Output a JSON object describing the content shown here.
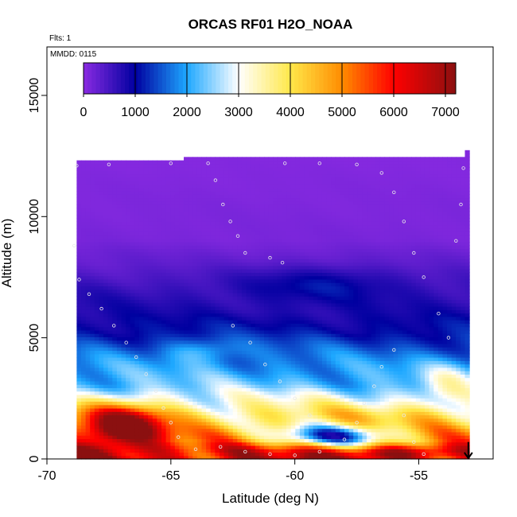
{
  "chart_data": {
    "type": "heatmap",
    "title": "ORCAS RF01 H2O_NOAA",
    "annotations": {
      "flights": "Flts: 1",
      "date": "MMDD: 0115"
    },
    "xlabel": "Latitude (deg N)",
    "ylabel": "Altitude (m)",
    "xlim": [
      -70,
      -52
    ],
    "ylim": [
      0,
      17000
    ],
    "x_ticks": [
      -70,
      -65,
      -60,
      -55
    ],
    "y_ticks": [
      0,
      5000,
      10000,
      15000
    ],
    "x_tick_labels": [
      "-70",
      "-65",
      "-60",
      "-55"
    ],
    "y_tick_labels": [
      "0",
      "5000",
      "10000",
      "15000"
    ],
    "colorbar": {
      "min": 0,
      "max": 7200,
      "ticks": [
        0,
        1000,
        2000,
        3000,
        4000,
        5000,
        6000,
        7000
      ],
      "tick_labels": [
        "0",
        "1000",
        "2000",
        "3000",
        "4000",
        "5000",
        "6000",
        "7000"
      ],
      "colors": [
        "#8a2be2",
        "#0000a0",
        "#1ea8ff",
        "#ffffff",
        "#ffe84a",
        "#ff8c00",
        "#ff0000",
        "#8b1010"
      ],
      "stops": [
        0,
        1000,
        2000,
        3000,
        4000,
        5000,
        6000,
        7200
      ]
    },
    "coverage": {
      "lat_min": -68.8,
      "lat_max": -53.0,
      "alt_top": 12300,
      "alt_top_right": 12700
    },
    "profile": [
      {
        "alt": 0,
        "value": 6200
      },
      {
        "alt": 300,
        "value": 5800
      },
      {
        "alt": 700,
        "value": 4800
      },
      {
        "alt": 1200,
        "value": 4400
      },
      {
        "alt": 1800,
        "value": 3900
      },
      {
        "alt": 2400,
        "value": 3000
      },
      {
        "alt": 3000,
        "value": 2300
      },
      {
        "alt": 3800,
        "value": 1900
      },
      {
        "alt": 4500,
        "value": 1500
      },
      {
        "alt": 5200,
        "value": 1100
      },
      {
        "alt": 6000,
        "value": 800
      },
      {
        "alt": 7000,
        "value": 600
      },
      {
        "alt": 8000,
        "value": 300
      },
      {
        "alt": 9000,
        "value": 120
      },
      {
        "alt": 12300,
        "value": 50
      }
    ],
    "anomalies": [
      {
        "lat": -66.7,
        "alt": 1400,
        "lat_width": 1.6,
        "alt_width": 900,
        "amp": 2600
      },
      {
        "lat": -67.8,
        "alt": 900,
        "lat_width": 1.2,
        "alt_width": 800,
        "amp": 900
      },
      {
        "lat": -58.5,
        "alt": 900,
        "lat_width": 2.5,
        "alt_width": 450,
        "amp": -2800
      },
      {
        "lat": -63.8,
        "alt": 4400,
        "lat_width": 1.5,
        "alt_width": 500,
        "amp": 700
      },
      {
        "lat": -59.0,
        "alt": 7200,
        "lat_width": 3.0,
        "alt_width": 700,
        "amp": 500
      },
      {
        "lat": -54.0,
        "alt": 3000,
        "lat_width": 1.0,
        "alt_width": 900,
        "amp": 900
      },
      {
        "lat": -56.0,
        "alt": 200,
        "lat_width": 2.5,
        "alt_width": 300,
        "amp": 1500
      }
    ],
    "flight_track": [
      {
        "lat": -68.8,
        "alt": 12100
      },
      {
        "lat": -67.5,
        "alt": 12150
      },
      {
        "lat": -65.0,
        "alt": 12200
      },
      {
        "lat": -63.5,
        "alt": 12200
      },
      {
        "lat": -63.2,
        "alt": 11500
      },
      {
        "lat": -62.9,
        "alt": 10500
      },
      {
        "lat": -62.6,
        "alt": 9800
      },
      {
        "lat": -62.3,
        "alt": 9200
      },
      {
        "lat": -62.0,
        "alt": 8500
      },
      {
        "lat": -61.0,
        "alt": 8300
      },
      {
        "lat": -60.5,
        "alt": 8100
      },
      {
        "lat": -60.4,
        "alt": 12200
      },
      {
        "lat": -59.0,
        "alt": 12200
      },
      {
        "lat": -57.5,
        "alt": 12150
      },
      {
        "lat": -56.5,
        "alt": 11800
      },
      {
        "lat": -56.0,
        "alt": 11000
      },
      {
        "lat": -55.6,
        "alt": 9800
      },
      {
        "lat": -55.2,
        "alt": 8500
      },
      {
        "lat": -54.8,
        "alt": 7500
      },
      {
        "lat": -54.2,
        "alt": 6000
      },
      {
        "lat": -53.8,
        "alt": 5000
      },
      {
        "lat": -53.2,
        "alt": 12000
      },
      {
        "lat": -53.3,
        "alt": 10500
      },
      {
        "lat": -53.5,
        "alt": 9000
      },
      {
        "lat": -68.9,
        "alt": 8800
      },
      {
        "lat": -68.7,
        "alt": 7400
      },
      {
        "lat": -68.3,
        "alt": 6800
      },
      {
        "lat": -67.8,
        "alt": 6200
      },
      {
        "lat": -67.3,
        "alt": 5500
      },
      {
        "lat": -66.8,
        "alt": 4800
      },
      {
        "lat": -66.4,
        "alt": 4200
      },
      {
        "lat": -66.0,
        "alt": 3500
      },
      {
        "lat": -65.6,
        "alt": 2800
      },
      {
        "lat": -65.3,
        "alt": 2100
      },
      {
        "lat": -65.0,
        "alt": 1500
      },
      {
        "lat": -64.7,
        "alt": 900
      },
      {
        "lat": -64.0,
        "alt": 400
      },
      {
        "lat": -63.0,
        "alt": 500
      },
      {
        "lat": -62.0,
        "alt": 300
      },
      {
        "lat": -61.0,
        "alt": 200
      },
      {
        "lat": -60.0,
        "alt": 150
      },
      {
        "lat": -59.0,
        "alt": 300
      },
      {
        "lat": -58.0,
        "alt": 800
      },
      {
        "lat": -57.5,
        "alt": 1500
      },
      {
        "lat": -57.2,
        "alt": 2300
      },
      {
        "lat": -56.8,
        "alt": 3000
      },
      {
        "lat": -56.5,
        "alt": 3800
      },
      {
        "lat": -56.0,
        "alt": 4500
      },
      {
        "lat": -55.6,
        "alt": 1800
      },
      {
        "lat": -55.2,
        "alt": 700
      },
      {
        "lat": -54.8,
        "alt": 200
      },
      {
        "lat": -62.5,
        "alt": 5500
      },
      {
        "lat": -61.8,
        "alt": 4800
      },
      {
        "lat": -61.2,
        "alt": 3900
      },
      {
        "lat": -60.6,
        "alt": 3200
      },
      {
        "lat": -60.0,
        "alt": 2500
      },
      {
        "lat": -59.4,
        "alt": 1800
      }
    ],
    "marker": {
      "lat": -53.0,
      "alt_from": 700,
      "alt_to": 0
    }
  }
}
